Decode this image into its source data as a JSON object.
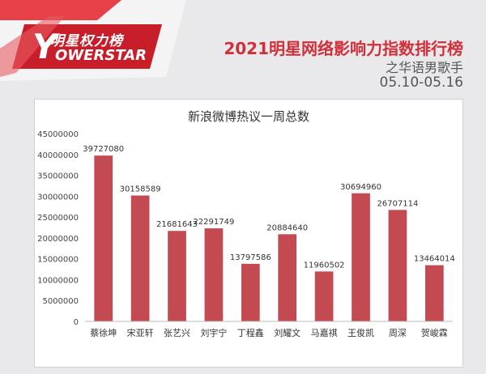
{
  "header": {
    "logo_brand": "明星权力榜",
    "logo_wordmark": "OWERSTAR",
    "logo_initial": "Y",
    "title": "2021明星网络影响力指数排行榜",
    "subtitle": "之华语男歌手",
    "date_range": "05.10-05.16"
  },
  "colors": {
    "bar": "#c44a52",
    "brand_red": "#d0303a"
  },
  "chart_data": {
    "type": "bar",
    "title": "新浪微博热议一周总数",
    "xlabel": "",
    "ylabel": "",
    "categories": [
      "蔡徐坤",
      "宋亚轩",
      "张艺兴",
      "刘宇宁",
      "丁程鑫",
      "刘耀文",
      "马嘉祺",
      "王俊凯",
      "周深",
      "贺峻霖"
    ],
    "values": [
      39727080,
      30158589,
      21681643,
      22291749,
      13797586,
      20884640,
      11960502,
      30694960,
      26707114,
      13464014
    ],
    "ylim": [
      0,
      45000000
    ],
    "yticks": [
      0,
      5000000,
      10000000,
      15000000,
      20000000,
      25000000,
      30000000,
      35000000,
      40000000,
      45000000
    ],
    "grid": false,
    "data_labels": true
  }
}
